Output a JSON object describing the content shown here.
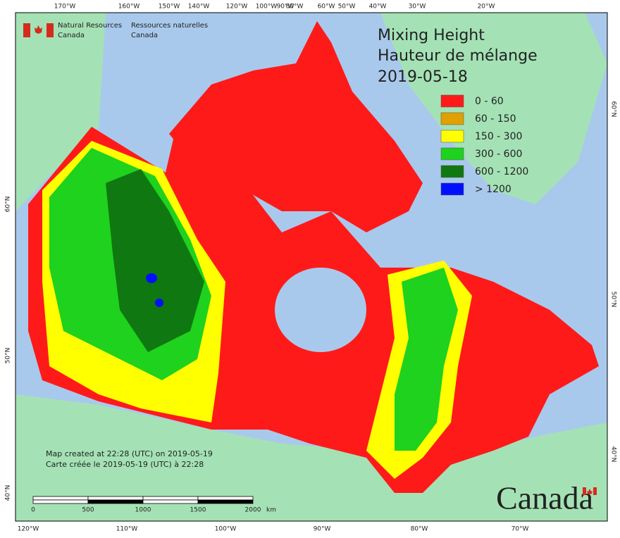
{
  "credits": {
    "en": [
      "Natural Resources",
      "Canada"
    ],
    "fr": [
      "Ressources naturelles",
      "Canada"
    ]
  },
  "title": [
    "Mixing Height",
    "Hauteur de mélange",
    "2019-05-18"
  ],
  "legend": [
    {
      "label": "0 - 60",
      "color": "#ff1a1a"
    },
    {
      "label": "60 - 150",
      "color": "#e0a000"
    },
    {
      "label": "150 - 300",
      "color": "#ffff00"
    },
    {
      "label": "300 - 600",
      "color": "#1ed21e"
    },
    {
      "label": "600 - 1200",
      "color": "#107810"
    },
    {
      "label": "> 1200",
      "color": "#0010ff"
    }
  ],
  "graticule": {
    "top": [
      "170°W",
      "160°W",
      "150°W",
      "140°W",
      "120°W",
      "100°W",
      "90°W",
      "80°W",
      "60°W",
      "50°W",
      "40°W",
      "30°W",
      "20°W"
    ],
    "bottom": [
      "120°W",
      "110°W",
      "100°W",
      "90°W",
      "80°W",
      "70°W"
    ],
    "left": [
      "60°N",
      "50°N",
      "40°N"
    ],
    "right": [
      "60°N",
      "50°N",
      "40°N"
    ]
  },
  "notes": [
    "Map created at 22:28 (UTC) on 2019-05-19",
    "Carte créée le 2019-05-19 (UTC) à 22:28"
  ],
  "scale": {
    "labels": [
      "0",
      "500",
      "1000",
      "1500",
      "2000"
    ],
    "unit": "km"
  },
  "wordmark": "Canada"
}
